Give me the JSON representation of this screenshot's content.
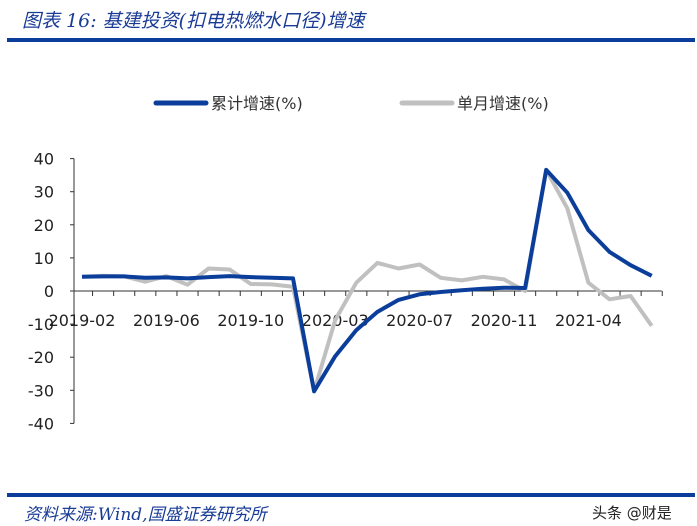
{
  "title": "图表 16:  基建投资(扣电热燃水口径)增速",
  "source": "资料来源:Wind,国盛证券研究所",
  "watermark": "头条 @财是",
  "chart_data": {
    "type": "line",
    "title": "",
    "xlabel": "",
    "ylabel": "",
    "ylim": [
      -40,
      40
    ],
    "yticks": [
      "40",
      "30",
      "20",
      "10",
      "0",
      "-10",
      "-20",
      "-30",
      "-40"
    ],
    "legend_position": "top",
    "x": [
      "2019-02",
      "2019-03",
      "2019-04",
      "2019-05",
      "2019-06",
      "2019-07",
      "2019-08",
      "2019-09",
      "2019-10",
      "2019-11",
      "2019-12",
      "2020-02",
      "2020-03",
      "2020-04",
      "2020-05",
      "2020-06",
      "2020-07",
      "2020-08",
      "2020-09",
      "2020-10",
      "2020-11",
      "2020-12",
      "2021-02",
      "2021-03",
      "2021-04",
      "2021-05",
      "2021-06",
      "2021-07"
    ],
    "xtick_labels": [
      "2019-02",
      "2019-06",
      "2019-10",
      "2020-03",
      "2020-07",
      "2020-11",
      "2021-04"
    ],
    "series": [
      {
        "name": "累计增速(%)",
        "color": "#0b3e9a",
        "values": [
          4.3,
          4.4,
          4.4,
          4.0,
          4.1,
          3.8,
          4.2,
          4.5,
          4.2,
          4.0,
          3.8,
          -30.3,
          -19.7,
          -11.8,
          -6.3,
          -2.7,
          -1.0,
          -0.3,
          0.2,
          0.7,
          1.0,
          0.9,
          36.6,
          29.7,
          18.4,
          11.8,
          7.8,
          4.6
        ]
      },
      {
        "name": "单月增速(%)",
        "color": "#c0c0c0",
        "values": [
          4.3,
          4.6,
          4.4,
          2.8,
          4.5,
          1.9,
          6.8,
          6.5,
          2.1,
          2.0,
          1.3,
          -30.3,
          -8.8,
          2.5,
          8.5,
          6.8,
          8.0,
          4.0,
          3.2,
          4.3,
          3.5,
          0.0,
          36.6,
          25.0,
          2.5,
          -2.5,
          -1.5,
          -10.5
        ]
      }
    ]
  }
}
